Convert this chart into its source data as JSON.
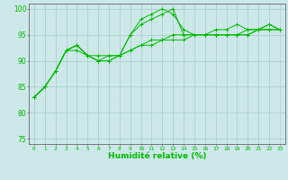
{
  "xlabel": "Humidité relative (%)",
  "background_color": "#cce8e8",
  "grid_color": "#aacccc",
  "line_color": "#00bb00",
  "axis_color": "#666666",
  "xlim": [
    -0.5,
    23.5
  ],
  "ylim": [
    74,
    101
  ],
  "yticks": [
    75,
    80,
    85,
    90,
    95,
    100
  ],
  "xticks": [
    0,
    1,
    2,
    3,
    4,
    5,
    6,
    7,
    8,
    9,
    10,
    11,
    12,
    13,
    14,
    15,
    16,
    17,
    18,
    19,
    20,
    21,
    22,
    23
  ],
  "series": [
    [
      83,
      85,
      88,
      92,
      92,
      91,
      90,
      91,
      91,
      95,
      98,
      99,
      100,
      99,
      96,
      95,
      95,
      96,
      96,
      97,
      96,
      96,
      97,
      96
    ],
    [
      83,
      85,
      88,
      92,
      93,
      91,
      91,
      91,
      91,
      95,
      97,
      98,
      99,
      100,
      95,
      95,
      95,
      95,
      95,
      95,
      96,
      96,
      97,
      96
    ],
    [
      83,
      85,
      88,
      92,
      93,
      91,
      90,
      90,
      91,
      92,
      93,
      94,
      94,
      95,
      95,
      95,
      95,
      95,
      95,
      95,
      95,
      96,
      96,
      96
    ],
    [
      83,
      85,
      88,
      92,
      93,
      91,
      90,
      90,
      91,
      92,
      93,
      93,
      94,
      94,
      94,
      95,
      95,
      95,
      95,
      95,
      95,
      96,
      96,
      96
    ]
  ]
}
